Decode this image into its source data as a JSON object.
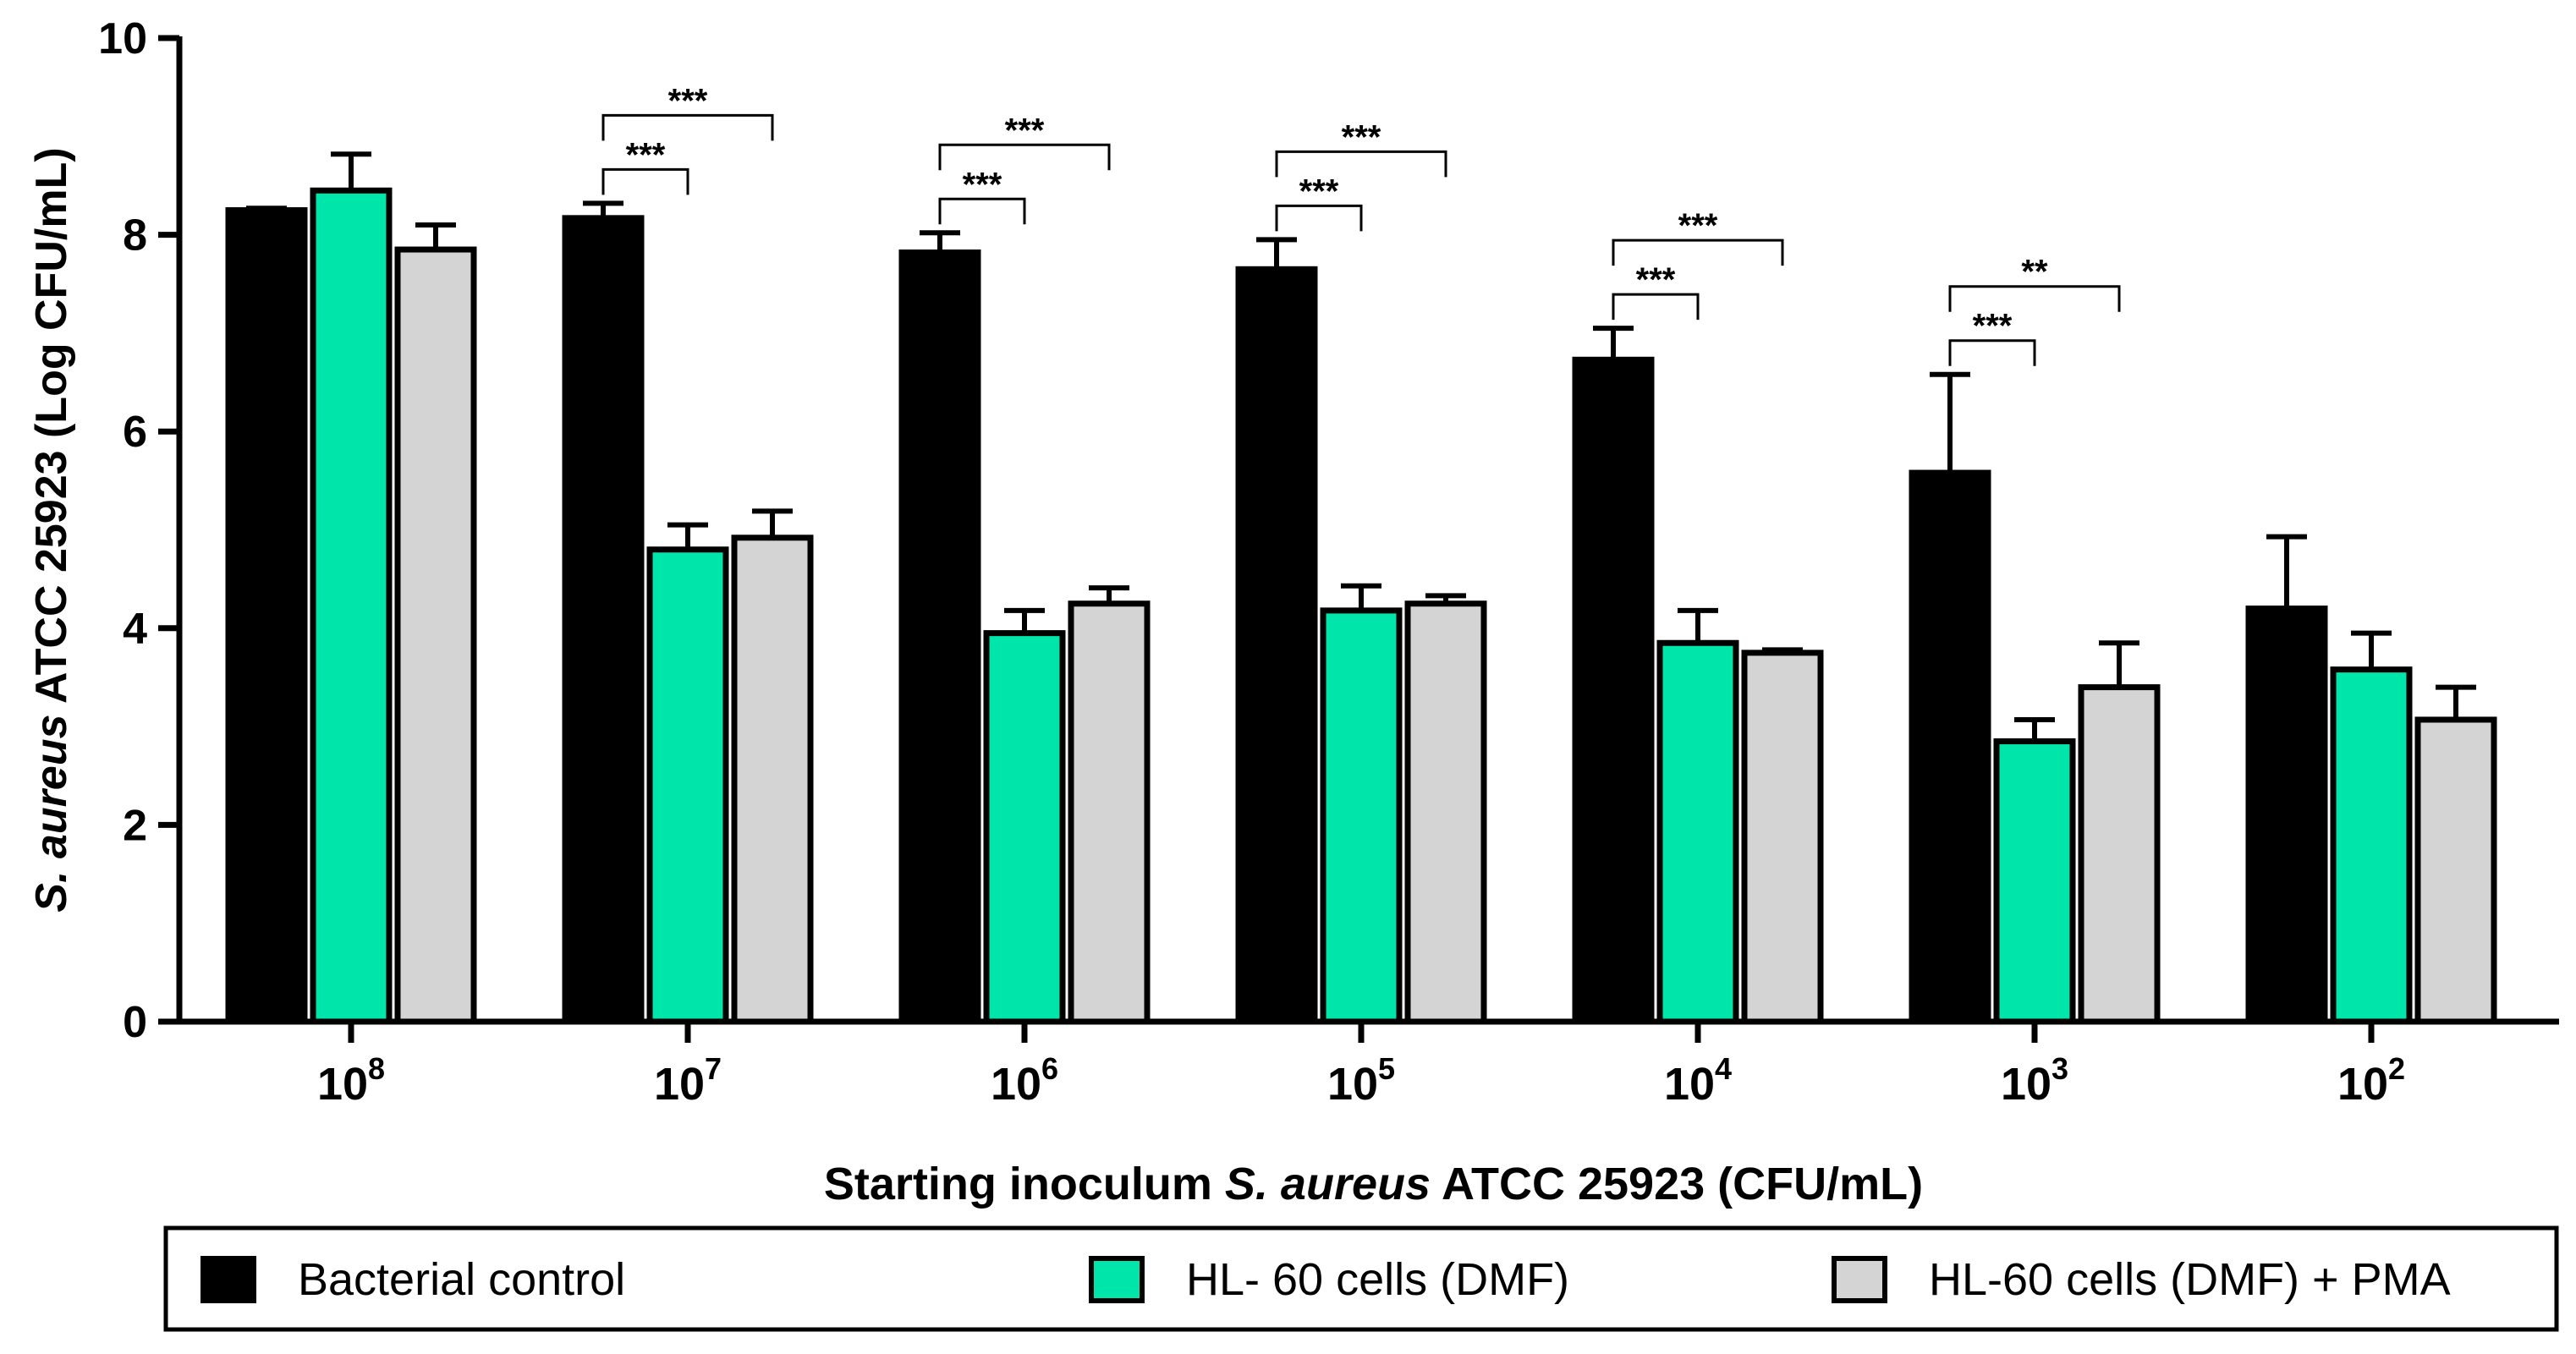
{
  "chart_data": {
    "type": "bar",
    "title": "",
    "ylabel_italic": "S. aureus",
    "ylabel_rest": " ATCC 25923 (Log CFU/mL)",
    "xlabel_prefix": "Starting inoculum ",
    "xlabel_italic": "S. aureus",
    "xlabel_suffix": " ATCC 25923 (CFU/mL)",
    "ylim": [
      0,
      10
    ],
    "yticks": [
      "0",
      "2",
      "4",
      "6",
      "8",
      "10"
    ],
    "grid": false,
    "legend_position": "bottom",
    "categories": [
      {
        "base": "10",
        "exp": "8"
      },
      {
        "base": "10",
        "exp": "7"
      },
      {
        "base": "10",
        "exp": "6"
      },
      {
        "base": "10",
        "exp": "5"
      },
      {
        "base": "10",
        "exp": "4"
      },
      {
        "base": "10",
        "exp": "3"
      },
      {
        "base": "10",
        "exp": "2"
      }
    ],
    "series": [
      {
        "name": "Bacterial control",
        "color": "#000000",
        "values": [
          8.25,
          8.17,
          7.82,
          7.65,
          6.73,
          5.58,
          4.2
        ],
        "errors": [
          0.02,
          0.15,
          0.2,
          0.3,
          0.32,
          1.0,
          0.73
        ]
      },
      {
        "name": "HL- 60 cells (DMF)",
        "color": "#00E5AA",
        "values": [
          8.45,
          4.8,
          3.95,
          4.18,
          3.85,
          2.85,
          3.58
        ],
        "errors": [
          0.37,
          0.25,
          0.23,
          0.25,
          0.33,
          0.22,
          0.37
        ]
      },
      {
        "name": "HL-60 cells (DMF) + PMA",
        "color": "#D4D4D4",
        "values": [
          7.85,
          4.92,
          4.25,
          4.25,
          3.75,
          3.4,
          3.07
        ],
        "errors": [
          0.25,
          0.27,
          0.16,
          0.08,
          0.03,
          0.45,
          0.33
        ]
      }
    ],
    "significance": [
      {
        "category": 1,
        "from": 0,
        "to": 1,
        "label": "***",
        "level": 0
      },
      {
        "category": 1,
        "from": 0,
        "to": 2,
        "label": "***",
        "level": 1
      },
      {
        "category": 2,
        "from": 0,
        "to": 1,
        "label": "***",
        "level": 0
      },
      {
        "category": 2,
        "from": 0,
        "to": 2,
        "label": "***",
        "level": 1
      },
      {
        "category": 3,
        "from": 0,
        "to": 1,
        "label": "***",
        "level": 0
      },
      {
        "category": 3,
        "from": 0,
        "to": 2,
        "label": "***",
        "level": 1
      },
      {
        "category": 4,
        "from": 0,
        "to": 1,
        "label": "***",
        "level": 0
      },
      {
        "category": 4,
        "from": 0,
        "to": 2,
        "label": "***",
        "level": 1
      },
      {
        "category": 5,
        "from": 0,
        "to": 1,
        "label": "***",
        "level": 0
      },
      {
        "category": 5,
        "from": 0,
        "to": 2,
        "label": "**",
        "level": 1
      }
    ]
  }
}
